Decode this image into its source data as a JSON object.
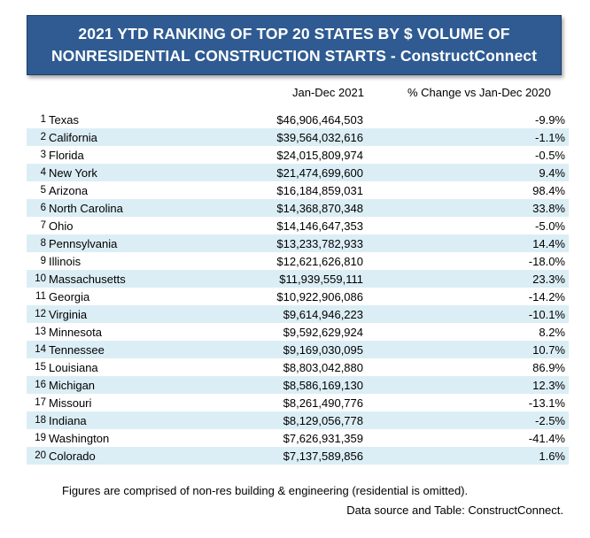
{
  "title": {
    "line1": "2021 YTD RANKING OF TOP 20 STATES BY $ VOLUME OF",
    "line2": "NONRESIDENTIAL CONSTRUCTION STARTS - ConstructConnect"
  },
  "columns": {
    "amount": "Jan-Dec 2021",
    "change": "% Change vs Jan-Dec 2020"
  },
  "rows": [
    {
      "rank": "1",
      "state": "Texas",
      "amount": "$46,906,464,503",
      "change": "-9.9%"
    },
    {
      "rank": "2",
      "state": "California",
      "amount": "$39,564,032,616",
      "change": "-1.1%"
    },
    {
      "rank": "3",
      "state": "Florida",
      "amount": "$24,015,809,974",
      "change": "-0.5%"
    },
    {
      "rank": "4",
      "state": "New York",
      "amount": "$21,474,699,600",
      "change": "9.4%"
    },
    {
      "rank": "5",
      "state": "Arizona",
      "amount": "$16,184,859,031",
      "change": "98.4%"
    },
    {
      "rank": "6",
      "state": "North Carolina",
      "amount": "$14,368,870,348",
      "change": "33.8%"
    },
    {
      "rank": "7",
      "state": "Ohio",
      "amount": "$14,146,647,353",
      "change": "-5.0%"
    },
    {
      "rank": "8",
      "state": "Pennsylvania",
      "amount": "$13,233,782,933",
      "change": "14.4%"
    },
    {
      "rank": "9",
      "state": "Illinois",
      "amount": "$12,621,626,810",
      "change": "-18.0%"
    },
    {
      "rank": "10",
      "state": "Massachusetts",
      "amount": "$11,939,559,111",
      "change": "23.3%"
    },
    {
      "rank": "11",
      "state": "Georgia",
      "amount": "$10,922,906,086",
      "change": "-14.2%"
    },
    {
      "rank": "12",
      "state": "Virginia",
      "amount": "$9,614,946,223",
      "change": "-10.1%"
    },
    {
      "rank": "13",
      "state": "Minnesota",
      "amount": "$9,592,629,924",
      "change": "8.2%"
    },
    {
      "rank": "14",
      "state": "Tennessee",
      "amount": "$9,169,030,095",
      "change": "10.7%"
    },
    {
      "rank": "15",
      "state": "Louisiana",
      "amount": "$8,803,042,880",
      "change": "86.9%"
    },
    {
      "rank": "16",
      "state": "Michigan",
      "amount": "$8,586,169,130",
      "change": "12.3%"
    },
    {
      "rank": "17",
      "state": "Missouri",
      "amount": "$8,261,490,776",
      "change": "-13.1%"
    },
    {
      "rank": "18",
      "state": "Indiana",
      "amount": "$8,129,056,778",
      "change": "-2.5%"
    },
    {
      "rank": "19",
      "state": "Washington",
      "amount": "$7,626,931,359",
      "change": "-41.4%"
    },
    {
      "rank": "20",
      "state": "Colorado",
      "amount": "$7,137,589,856",
      "change": "1.6%"
    }
  ],
  "footnote": "Figures are comprised of non-res building & engineering (residential is omitted).",
  "source": "Data source and Table: ConstructConnect.",
  "colors": {
    "title_bg": "#2f5b92",
    "row_shade": "#dceef5"
  }
}
